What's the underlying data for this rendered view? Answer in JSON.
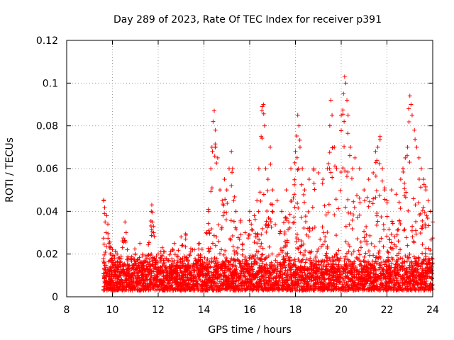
{
  "chart_data": {
    "type": "scatter",
    "title": "Day 289 of 2023, Rate Of TEC Index for receiver p391",
    "xlabel": "GPS time / hours",
    "ylabel": "ROTI / TECUs",
    "xlim": [
      8,
      24
    ],
    "ylim": [
      0,
      0.12
    ],
    "x_ticks": [
      8,
      10,
      12,
      14,
      16,
      18,
      20,
      22,
      24
    ],
    "x_tick_labels": [
      "8",
      "10",
      "12",
      "14",
      "16",
      "18",
      "20",
      "22",
      "24"
    ],
    "y_ticks": [
      0,
      0.02,
      0.04,
      0.06,
      0.08,
      0.1,
      0.12
    ],
    "y_tick_labels": [
      "0",
      "0.02",
      "0.04",
      "0.06",
      "0.08",
      "0.1",
      "0.12"
    ],
    "grid": true,
    "marker": "+",
    "color": "#ff0000",
    "series": [
      {
        "name": "ROTI",
        "x": [
          9.62,
          9.65,
          9.68,
          9.72,
          9.75,
          9.8,
          9.85,
          9.9,
          10.0,
          10.1,
          10.3,
          10.55,
          10.6,
          10.65,
          10.8,
          11.0,
          11.2,
          11.5,
          11.7,
          11.72,
          11.75,
          11.8,
          12.0,
          12.3,
          12.7,
          13.0,
          13.2,
          13.5,
          13.8,
          14.1,
          14.2,
          14.3,
          14.35,
          14.4,
          14.45,
          14.5,
          14.6,
          14.7,
          14.8,
          14.9,
          15.0,
          15.1,
          15.2,
          15.25,
          15.3,
          15.4,
          15.6,
          15.8,
          16.0,
          16.2,
          16.4,
          16.5,
          16.55,
          16.6,
          16.65,
          16.7,
          16.8,
          16.9,
          17.0,
          17.2,
          17.4,
          17.6,
          17.8,
          18.0,
          18.1,
          18.15,
          18.2,
          18.3,
          18.4,
          18.6,
          18.8,
          19.0,
          19.2,
          19.4,
          19.5,
          19.55,
          19.6,
          19.7,
          19.8,
          20.0,
          20.1,
          20.15,
          20.2,
          20.25,
          20.3,
          20.4,
          20.5,
          20.6,
          20.8,
          21.0,
          21.2,
          21.4,
          21.5,
          21.6,
          21.7,
          21.8,
          21.9,
          22.0,
          22.2,
          22.4,
          22.6,
          22.7,
          22.8,
          22.9,
          22.95,
          23.0,
          23.05,
          23.1,
          23.2,
          23.3,
          23.4,
          23.5,
          23.6,
          23.7,
          23.8,
          23.9,
          24.0
        ],
        "y": [
          0.045,
          0.039,
          0.035,
          0.03,
          0.038,
          0.034,
          0.025,
          0.02,
          0.022,
          0.018,
          0.015,
          0.035,
          0.03,
          0.022,
          0.018,
          0.02,
          0.025,
          0.018,
          0.04,
          0.043,
          0.035,
          0.03,
          0.02,
          0.018,
          0.025,
          0.028,
          0.027,
          0.022,
          0.025,
          0.03,
          0.04,
          0.06,
          0.07,
          0.082,
          0.087,
          0.078,
          0.065,
          0.05,
          0.045,
          0.055,
          0.05,
          0.06,
          0.068,
          0.06,
          0.045,
          0.04,
          0.035,
          0.03,
          0.04,
          0.038,
          0.06,
          0.075,
          0.089,
          0.09,
          0.08,
          0.06,
          0.055,
          0.07,
          0.05,
          0.045,
          0.04,
          0.05,
          0.06,
          0.068,
          0.085,
          0.08,
          0.07,
          0.06,
          0.05,
          0.055,
          0.06,
          0.058,
          0.055,
          0.06,
          0.08,
          0.092,
          0.085,
          0.07,
          0.06,
          0.085,
          0.095,
          0.103,
          0.1,
          0.092,
          0.085,
          0.07,
          0.06,
          0.065,
          0.06,
          0.05,
          0.055,
          0.058,
          0.068,
          0.07,
          0.075,
          0.06,
          0.05,
          0.045,
          0.05,
          0.048,
          0.055,
          0.06,
          0.065,
          0.07,
          0.088,
          0.094,
          0.09,
          0.085,
          0.078,
          0.07,
          0.065,
          0.06,
          0.055,
          0.05,
          0.045,
          0.04,
          0.035
        ]
      }
    ],
    "background_band": {
      "x_start": 9.6,
      "x_end": 24.0,
      "y_low": 0.003,
      "y_high": 0.02
    }
  }
}
